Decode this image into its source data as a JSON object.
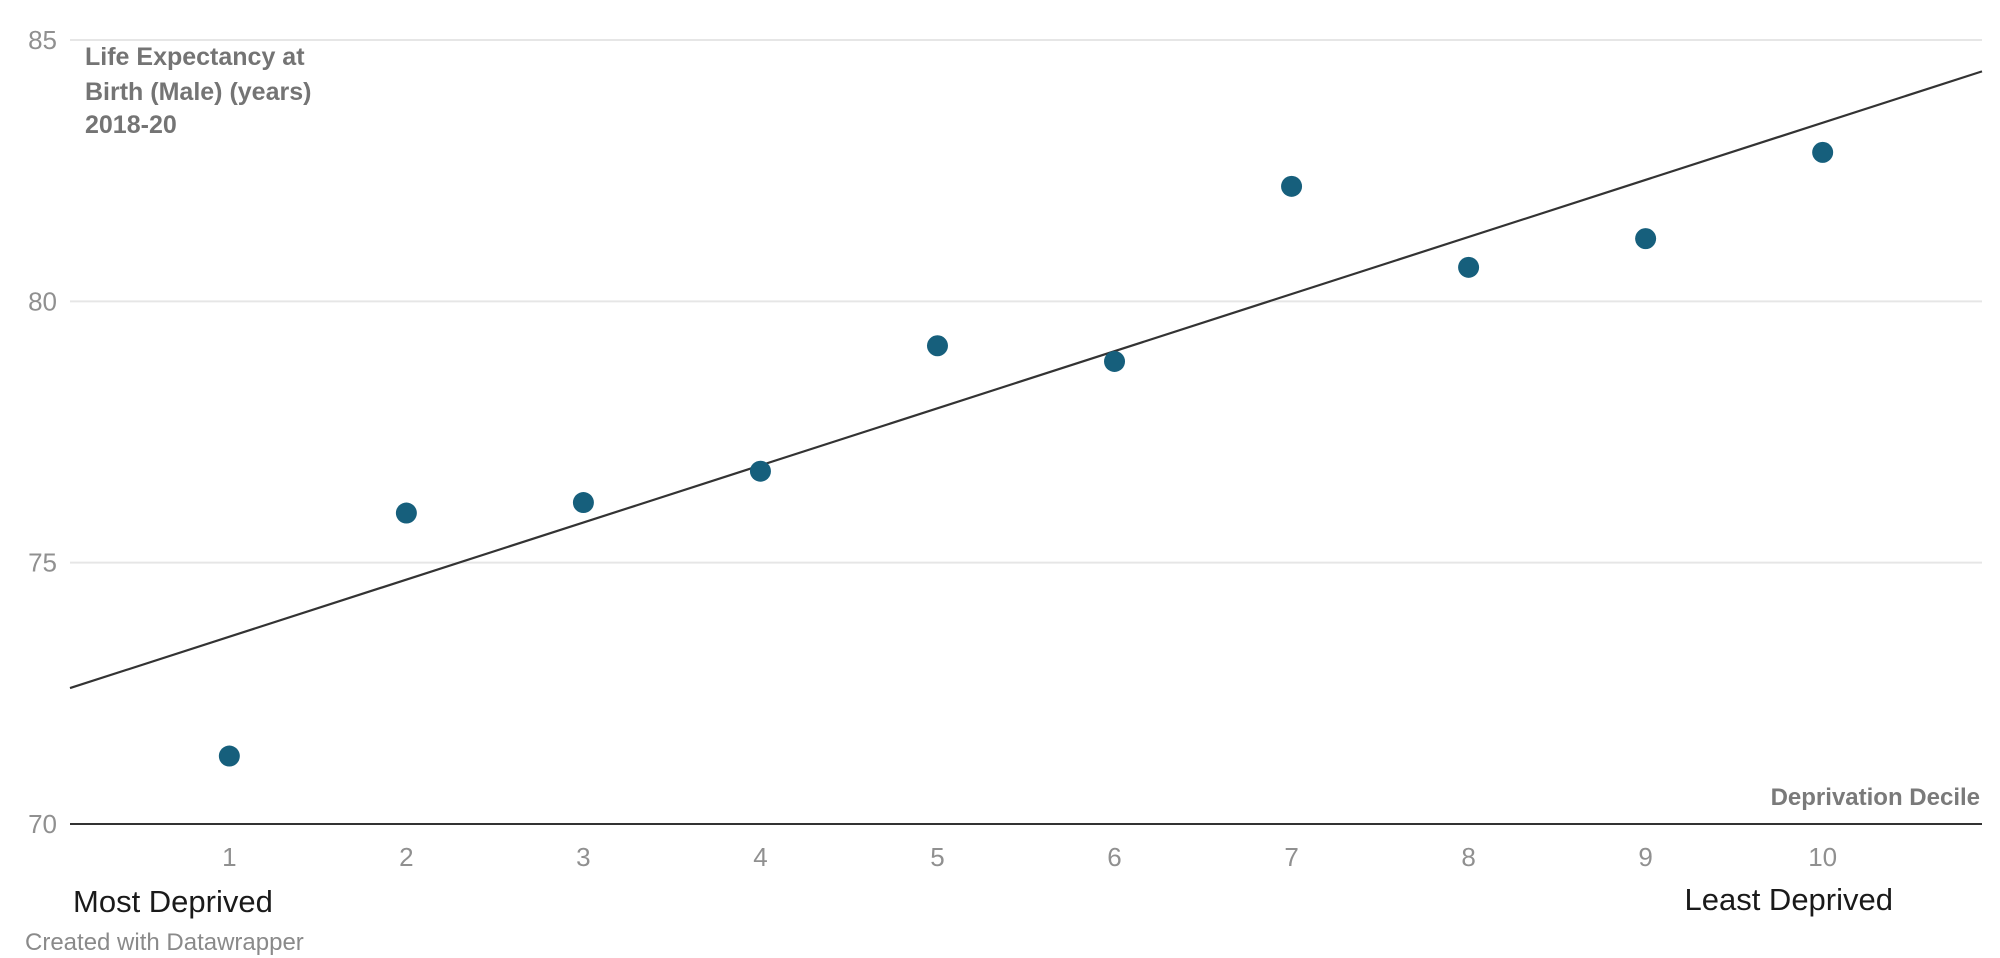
{
  "chart_data": {
    "type": "scatter",
    "title": "",
    "ylabel_lines": [
      "Life Expectancy at",
      "Birth (Male) (years)",
      "2018-20"
    ],
    "xlabel": "Deprivation Decile",
    "x": [
      1,
      2,
      3,
      4,
      5,
      6,
      7,
      8,
      9,
      10
    ],
    "y": [
      71.3,
      75.95,
      76.15,
      76.75,
      79.15,
      78.85,
      82.2,
      80.65,
      81.2,
      82.85
    ],
    "xlim": [
      0.1,
      10.9
    ],
    "ylim": [
      70,
      85
    ],
    "x_ticks": [
      1,
      2,
      3,
      4,
      5,
      6,
      7,
      8,
      9,
      10
    ],
    "y_ticks": [
      70,
      75,
      80,
      85
    ],
    "grid": true,
    "trendline": {
      "type": "linear",
      "start": {
        "x": 0.1,
        "y": 72.6
      },
      "end": {
        "x": 10.9,
        "y": 84.4
      }
    },
    "annotations": {
      "left": "Most Deprived",
      "right": "Least Deprived"
    },
    "colors": {
      "points": "#165f7c",
      "trendline": "#333333",
      "grid": "#e6e6e6",
      "axis": "#333333"
    }
  },
  "footer": {
    "credit": "Created with Datawrapper"
  }
}
